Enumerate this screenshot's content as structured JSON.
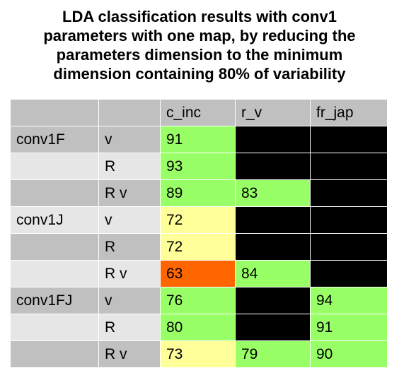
{
  "title_lines": [
    "LDA classification results with conv1",
    "parameters with one map, by reducing the",
    "parameters dimension to the minimum",
    "dimension containing 80% of variability"
  ],
  "colors": {
    "green": "#99ff66",
    "yellow": "#ffff99",
    "orange": "#ff6600",
    "black": "#000000",
    "header_gray": "#c0c0c0",
    "row_gray_dark": "#c0c0c0",
    "row_gray_light": "#e6e6e6"
  },
  "chart_data": {
    "type": "table",
    "title": "LDA classification results with conv1 parameters with one map, by reducing the parameters dimension to the minimum dimension containing 80% of variability",
    "columns": [
      "",
      "",
      "c_inc",
      "r_v",
      "fr_jap"
    ],
    "rows": [
      {
        "group": "conv1F",
        "variant": "v",
        "c_inc": "91",
        "r_v": "",
        "fr_jap": "",
        "c_inc_color": "green",
        "r_v_color": "black",
        "fr_jap_color": "black",
        "shade": "dark"
      },
      {
        "group": "",
        "variant": "R",
        "c_inc": "93",
        "r_v": "",
        "fr_jap": "",
        "c_inc_color": "green",
        "r_v_color": "black",
        "fr_jap_color": "black",
        "shade": "light"
      },
      {
        "group": "",
        "variant": "R v",
        "c_inc": "89",
        "r_v": "83",
        "fr_jap": "",
        "c_inc_color": "green",
        "r_v_color": "green",
        "fr_jap_color": "black",
        "shade": "dark"
      },
      {
        "group": "conv1J",
        "variant": "v",
        "c_inc": "72",
        "r_v": "",
        "fr_jap": "",
        "c_inc_color": "yellow",
        "r_v_color": "black",
        "fr_jap_color": "black",
        "shade": "light"
      },
      {
        "group": "",
        "variant": "R",
        "c_inc": "72",
        "r_v": "",
        "fr_jap": "",
        "c_inc_color": "yellow",
        "r_v_color": "black",
        "fr_jap_color": "black",
        "shade": "dark"
      },
      {
        "group": "",
        "variant": "R v",
        "c_inc": "63",
        "r_v": "84",
        "fr_jap": "",
        "c_inc_color": "orange",
        "r_v_color": "green",
        "fr_jap_color": "black",
        "shade": "light"
      },
      {
        "group": "conv1FJ",
        "variant": "v",
        "c_inc": "76",
        "r_v": "",
        "fr_jap": "94",
        "c_inc_color": "green",
        "r_v_color": "black",
        "fr_jap_color": "green",
        "shade": "dark"
      },
      {
        "group": "",
        "variant": "R",
        "c_inc": "80",
        "r_v": "",
        "fr_jap": "91",
        "c_inc_color": "green",
        "r_v_color": "black",
        "fr_jap_color": "green",
        "shade": "light"
      },
      {
        "group": "",
        "variant": "R v",
        "c_inc": "73",
        "r_v": "79",
        "fr_jap": "90",
        "c_inc_color": "yellow",
        "r_v_color": "green",
        "fr_jap_color": "green",
        "shade": "dark"
      }
    ]
  }
}
